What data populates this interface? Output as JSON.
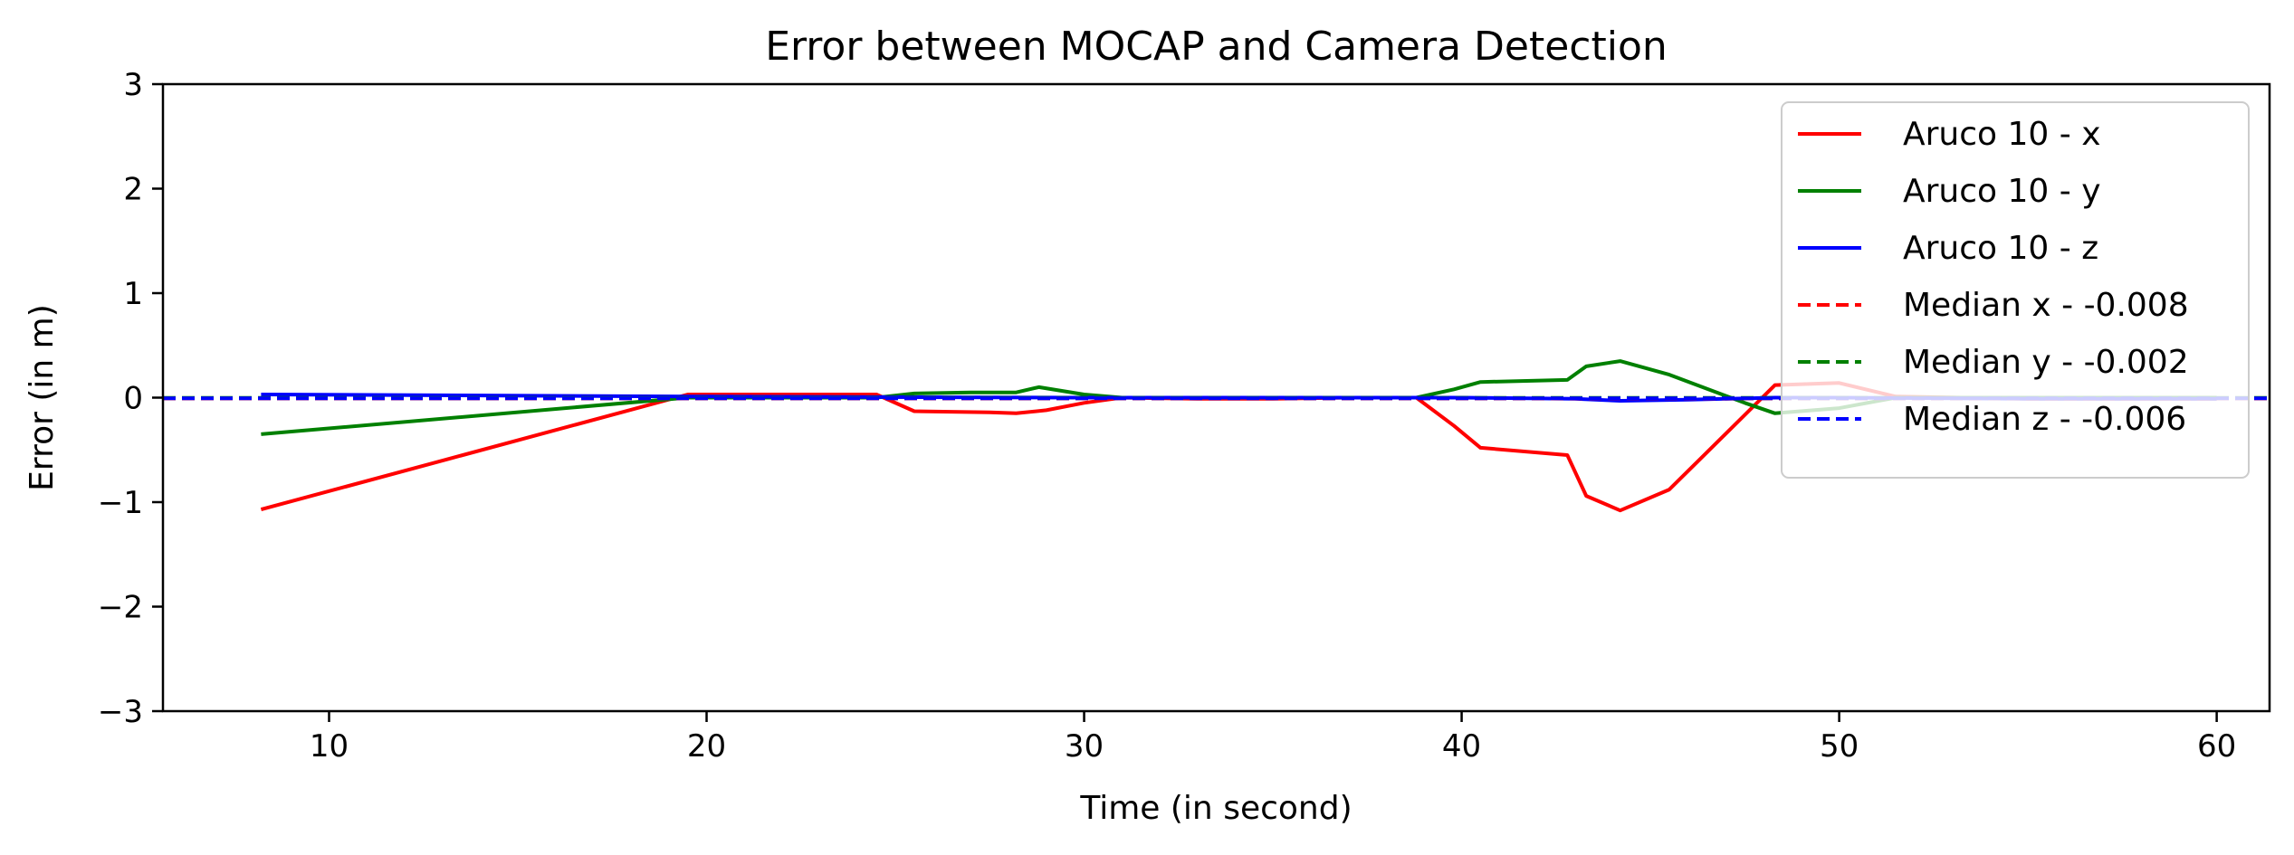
{
  "chart_data": {
    "type": "line",
    "title": "Error between MOCAP and Camera Detection",
    "xlabel": "Time (in second)",
    "ylabel": "Error (in m)",
    "xlim": [
      5.6,
      61.4
    ],
    "ylim": [
      -3,
      3
    ],
    "xticks": [
      10,
      20,
      30,
      40,
      50,
      60
    ],
    "yticks": [
      -3,
      -2,
      -1,
      0,
      1,
      2,
      3
    ],
    "legend_position": "upper-right",
    "series": [
      {
        "name": "Aruco 10 - x",
        "color": "#ff0000",
        "style": "solid",
        "x": [
          8.2,
          19.5,
          24.5,
          25.5,
          27.5,
          28.2,
          29.0,
          30.0,
          31.0,
          33.0,
          35.0,
          37.0,
          38.8,
          39.8,
          40.5,
          42.8,
          43.3,
          44.2,
          45.5,
          48.3,
          50.0,
          51.5,
          55.0,
          60.0
        ],
        "y": [
          -1.07,
          0.03,
          0.03,
          -0.13,
          -0.14,
          -0.15,
          -0.12,
          -0.05,
          0.0,
          -0.01,
          -0.01,
          0.0,
          0.0,
          -0.27,
          -0.48,
          -0.55,
          -0.94,
          -1.08,
          -0.88,
          0.12,
          0.14,
          0.01,
          -0.01,
          -0.01
        ]
      },
      {
        "name": "Aruco 10 - y",
        "color": "#008000",
        "style": "solid",
        "x": [
          8.2,
          19.5,
          24.5,
          25.5,
          27.0,
          28.2,
          28.8,
          30.0,
          31.0,
          35.0,
          38.8,
          39.8,
          40.5,
          42.8,
          43.3,
          44.2,
          45.5,
          47.5,
          48.3,
          50.0,
          51.5,
          55.0,
          60.0
        ],
        "y": [
          -0.35,
          0.0,
          0.0,
          0.04,
          0.05,
          0.05,
          0.1,
          0.03,
          0.0,
          0.0,
          0.0,
          0.08,
          0.15,
          0.17,
          0.3,
          0.35,
          0.22,
          -0.05,
          -0.15,
          -0.1,
          0.0,
          0.0,
          0.0
        ]
      },
      {
        "name": "Aruco 10 - z",
        "color": "#0000ff",
        "style": "solid",
        "x": [
          8.2,
          20.0,
          30.0,
          40.0,
          43.0,
          44.2,
          46.0,
          48.3,
          50.0,
          55.0,
          60.0
        ],
        "y": [
          0.03,
          0.01,
          0.0,
          0.0,
          -0.01,
          -0.03,
          -0.02,
          0.0,
          0.0,
          -0.01,
          -0.01
        ]
      },
      {
        "name": "Median x - -0.008",
        "color": "#ff0000",
        "style": "dashed",
        "hline": -0.008
      },
      {
        "name": "Median y - -0.002",
        "color": "#008000",
        "style": "dashed",
        "hline": -0.002
      },
      {
        "name": "Median z - -0.006",
        "color": "#0000ff",
        "style": "dashed",
        "hline": -0.006
      }
    ]
  }
}
